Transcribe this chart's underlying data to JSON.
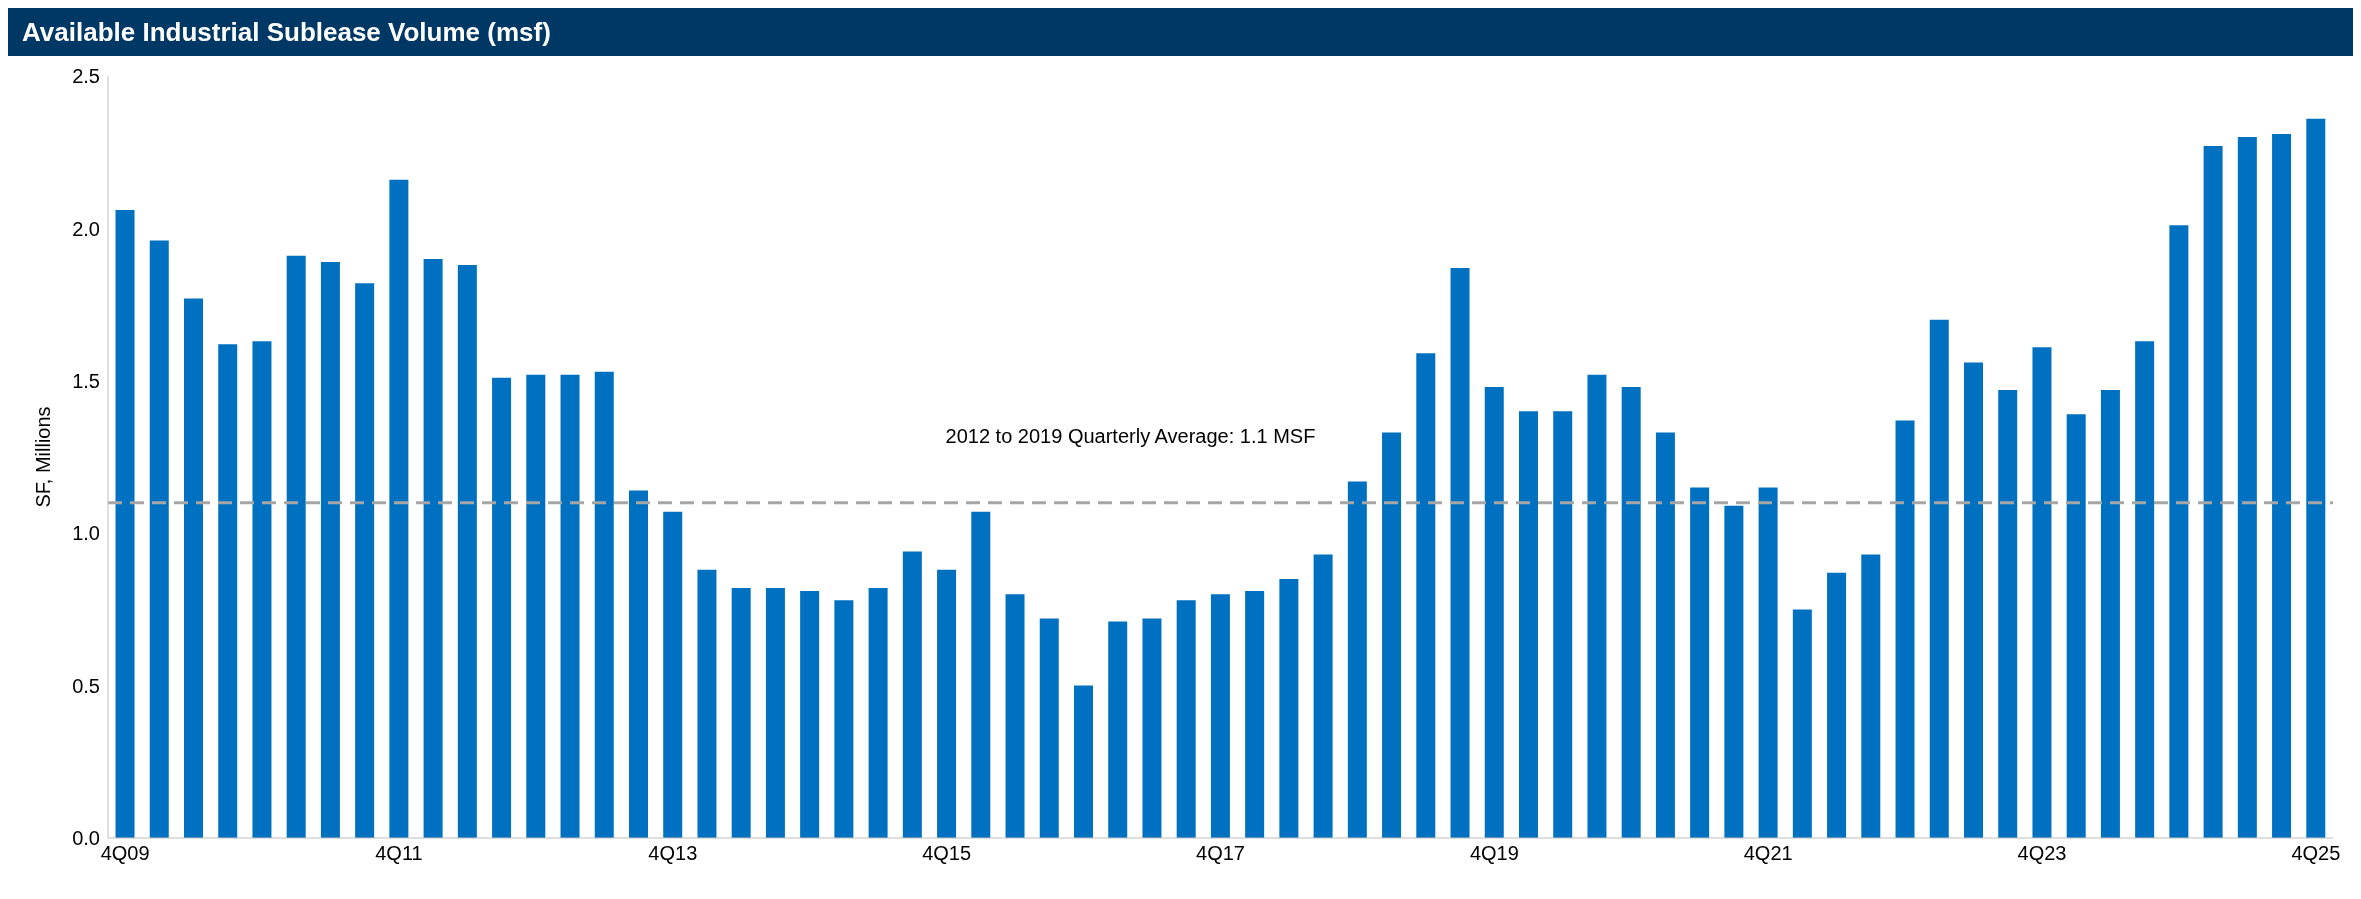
{
  "chart_data": {
    "type": "bar",
    "title": "Available Industrial Sublease Volume (msf)",
    "ylabel": "SF, Millions",
    "categories": [
      "4Q09",
      null,
      null,
      null,
      null,
      null,
      null,
      null,
      "4Q11",
      null,
      null,
      null,
      null,
      null,
      null,
      null,
      "4Q13",
      null,
      null,
      null,
      null,
      null,
      null,
      null,
      "4Q15",
      null,
      null,
      null,
      null,
      null,
      null,
      null,
      "4Q17",
      null,
      null,
      null,
      null,
      null,
      null,
      null,
      "4Q19",
      null,
      null,
      null,
      null,
      null,
      null,
      null,
      "4Q21",
      null,
      null,
      null,
      null,
      null,
      null,
      null,
      "4Q23",
      null,
      null,
      null,
      null,
      null,
      null,
      null,
      "4Q25"
    ],
    "values": [
      2.06,
      1.96,
      1.77,
      1.62,
      1.63,
      1.91,
      1.89,
      1.82,
      2.16,
      1.9,
      1.88,
      1.51,
      1.52,
      1.52,
      1.53,
      1.14,
      1.07,
      0.88,
      0.82,
      0.82,
      0.81,
      0.78,
      0.82,
      0.94,
      0.88,
      1.07,
      0.8,
      0.72,
      0.5,
      0.71,
      0.72,
      0.78,
      0.8,
      0.81,
      0.85,
      0.93,
      1.17,
      1.33,
      1.59,
      1.87,
      1.48,
      1.4,
      1.4,
      1.52,
      1.48,
      1.33,
      1.15,
      1.09,
      1.15,
      0.75,
      0.87,
      0.93,
      1.37,
      1.7,
      1.56,
      1.47,
      1.61,
      1.39,
      1.47,
      1.63,
      2.01,
      2.27,
      2.3,
      2.31,
      2.36
    ],
    "color": "#0070c0",
    "ylim": [
      0,
      2.5
    ],
    "yticks": [
      {
        "value": 0,
        "label": "0.0"
      },
      {
        "value": 0.5,
        "label": "0.5"
      },
      {
        "value": 1,
        "label": "1.0"
      },
      {
        "value": 1.5,
        "label": "1.5"
      },
      {
        "value": 2,
        "label": "2.0"
      },
      {
        "value": 2.5,
        "label": "2.5"
      }
    ],
    "grid": false,
    "legend": false,
    "ref_lines": [
      {
        "axis": "y",
        "value": 1.1,
        "label": "2012 to 2019 Quarterly Average: 1.1 MSF",
        "color": "#a6a6a6",
        "line_style": "dashed"
      }
    ]
  }
}
